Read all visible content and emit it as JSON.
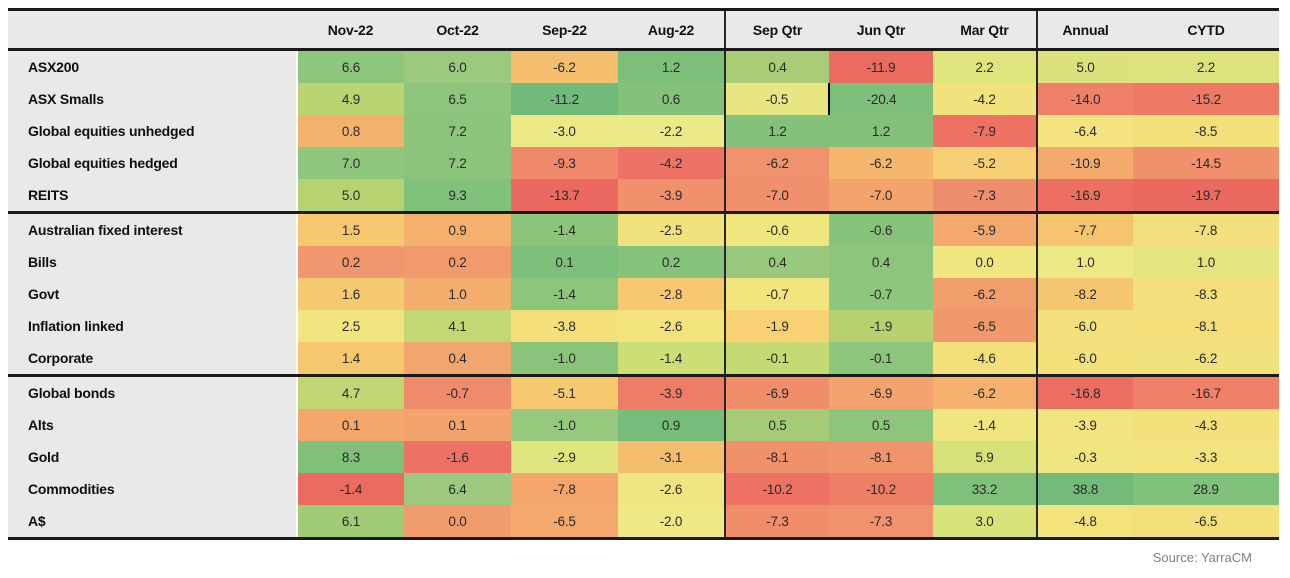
{
  "chart_data": {
    "type": "heatmap",
    "title": "",
    "unit": "percent return",
    "columns": [
      {
        "label": "",
        "type": "label"
      },
      {
        "label": "Nov-22",
        "group": "months"
      },
      {
        "label": "Oct-22",
        "group": "months"
      },
      {
        "label": "Sep-22",
        "group": "months"
      },
      {
        "label": "Aug-22",
        "group": "months",
        "group_end": true
      },
      {
        "label": "Sep Qtr",
        "group": "quarters"
      },
      {
        "label": "Jun Qtr",
        "group": "quarters"
      },
      {
        "label": "Mar Qtr",
        "group": "quarters",
        "group_end": true
      },
      {
        "label": "Annual",
        "group": "summary"
      },
      {
        "label": "CYTD",
        "group": "summary"
      }
    ],
    "rows": [
      {
        "label": "ASX200",
        "values": [
          6.6,
          6.0,
          -6.2,
          1.2,
          0.4,
          -11.9,
          2.2,
          5.0,
          2.2
        ],
        "colors": [
          "#8ec67d",
          "#9bca7e",
          "#f5bd6e",
          "#7cbf7b",
          "#a8cd76",
          "#ec6b60",
          "#dfe47d",
          "#dbe27b",
          "#dde37c"
        ]
      },
      {
        "label": "ASX Smalls",
        "values": [
          4.9,
          6.5,
          -11.2,
          0.6,
          -0.5,
          -20.4,
          -4.2,
          -14.0,
          -15.2
        ],
        "colors": [
          "#bad471",
          "#8dc57c",
          "#72ba79",
          "#84c17b",
          "#e7e682",
          "#7dbf7b",
          "#f1e27d",
          "#ee8168",
          "#ee7a66"
        ]
      },
      {
        "label": "Global equities unhedged",
        "values": [
          0.8,
          7.2,
          -3.0,
          -2.2,
          1.2,
          1.2,
          -7.9,
          -6.4,
          -8.5
        ],
        "colors": [
          "#f3b26c",
          "#8cc47c",
          "#ebe886",
          "#ece988",
          "#84c17b",
          "#83c17b",
          "#ed7264",
          "#f4e37e",
          "#f3e07b"
        ]
      },
      {
        "label": "Global equities hedged",
        "values": [
          7.0,
          7.2,
          -9.3,
          -4.2,
          -6.2,
          -6.2,
          -5.2,
          -10.9,
          -14.5
        ],
        "colors": [
          "#8fc67d",
          "#8cc47c",
          "#f0896b",
          "#ed7465",
          "#f0926d",
          "#f5b76e",
          "#f7cf74",
          "#f4a96d",
          "#f0906c"
        ]
      },
      {
        "label": "REITS",
        "values": [
          5.0,
          9.3,
          -13.7,
          -3.9,
          -7.0,
          -7.0,
          -7.3,
          -16.9,
          -19.7
        ],
        "colors": [
          "#b7d270",
          "#80c17c",
          "#eb6961",
          "#f0906d",
          "#f0906c",
          "#f3a36c",
          "#ef8e6c",
          "#ec6f62",
          "#eb6a60"
        ]
      },
      {
        "label": "Australian fixed interest",
        "group_start": true,
        "values": [
          1.5,
          0.9,
          -1.4,
          -2.5,
          -0.6,
          -0.6,
          -5.9,
          -7.7,
          -7.8
        ],
        "colors": [
          "#f6c970",
          "#f4b16d",
          "#8cc47c",
          "#f1e27e",
          "#f0e67f",
          "#88c37c",
          "#f3a86d",
          "#f6c36f",
          "#f3e07c"
        ]
      },
      {
        "label": "Bills",
        "values": [
          0.2,
          0.2,
          0.1,
          0.2,
          0.4,
          0.4,
          0.0,
          1.0,
          1.0
        ],
        "colors": [
          "#f0976d",
          "#f19b6d",
          "#7cc07b",
          "#86c27b",
          "#97c87d",
          "#8cc57c",
          "#efe680",
          "#ece984",
          "#e4e580"
        ]
      },
      {
        "label": "Govt",
        "values": [
          1.6,
          1.0,
          -1.4,
          -2.8,
          -0.7,
          -0.7,
          -6.2,
          -8.2,
          -8.3
        ],
        "colors": [
          "#f6ca70",
          "#f4ae6d",
          "#8ec57d",
          "#f7c870",
          "#f2e57e",
          "#8fc67d",
          "#f29d6c",
          "#f6c56f",
          "#f3df7b"
        ]
      },
      {
        "label": "Inflation linked",
        "values": [
          2.5,
          4.1,
          -3.8,
          -2.6,
          -1.9,
          -1.9,
          -6.5,
          -6.0,
          -8.1
        ],
        "colors": [
          "#f0e57f",
          "#c2d873",
          "#f5df7a",
          "#f2e37d",
          "#f7d173",
          "#b6d170",
          "#f0996d",
          "#f3e07c",
          "#f4de7a"
        ]
      },
      {
        "label": "Corporate",
        "values": [
          1.4,
          0.4,
          -1.0,
          -1.4,
          -0.1,
          -0.1,
          -4.6,
          -6.0,
          -6.2
        ],
        "colors": [
          "#f6c76f",
          "#f2a56c",
          "#8ac37c",
          "#cede76",
          "#c6da74",
          "#8dc57c",
          "#f4e07b",
          "#f3e17c",
          "#f2e27d"
        ]
      },
      {
        "label": "Global bonds",
        "group_start": true,
        "values": [
          4.7,
          -0.7,
          -5.1,
          -3.9,
          -6.9,
          -6.9,
          -6.2,
          -16.8,
          -16.7
        ],
        "colors": [
          "#c0d773",
          "#ef8a6b",
          "#f7ca71",
          "#ee7d67",
          "#f08d6b",
          "#f3a46c",
          "#f5b16d",
          "#ec6e62",
          "#ee8168"
        ]
      },
      {
        "label": "Alts",
        "values": [
          0.1,
          0.1,
          -1.0,
          0.9,
          0.5,
          0.5,
          -1.4,
          -3.9,
          -4.3
        ],
        "colors": [
          "#f3a76c",
          "#f3a36c",
          "#96c87d",
          "#76bc7a",
          "#a5cb77",
          "#8dc57d",
          "#f0e67f",
          "#f2e47e",
          "#f3e17c"
        ]
      },
      {
        "label": "Gold",
        "values": [
          8.3,
          -1.6,
          -2.9,
          -3.1,
          -8.1,
          -8.1,
          5.9,
          -0.3,
          -3.3
        ],
        "colors": [
          "#80c07b",
          "#ed7164",
          "#e0e47d",
          "#f5bd6e",
          "#f0916c",
          "#f0946c",
          "#d6e17a",
          "#f0e680",
          "#f1e47e"
        ]
      },
      {
        "label": "Commodities",
        "values": [
          -1.4,
          6.4,
          -7.8,
          -2.6,
          -10.2,
          -10.2,
          33.2,
          38.8,
          28.9
        ],
        "colors": [
          "#ec6b61",
          "#9cc97e",
          "#f3a56c",
          "#f0e681",
          "#ed7263",
          "#ee7d66",
          "#7fc07b",
          "#74bb79",
          "#80c17b"
        ]
      },
      {
        "label": "A$",
        "values": [
          6.1,
          0.0,
          -6.5,
          -2.0,
          -7.3,
          -7.3,
          3.0,
          -4.8,
          -6.5
        ],
        "colors": [
          "#a2cb75",
          "#f19c6c",
          "#f3a96d",
          "#eee985",
          "#f08e6c",
          "#f0926d",
          "#d8e27b",
          "#f4e27d",
          "#f3e07b"
        ]
      }
    ],
    "selection_mark": {
      "row_index": 1,
      "value_col_index": 5
    },
    "palette": {
      "negative_extreme": "#ec6b60",
      "neutral": "#f0e67f",
      "positive_extreme": "#72ba79",
      "header_bg": "#e9e9e9",
      "label_bg": "#e9e9e9",
      "border": "#1a1a1a",
      "value_text": "#2a2a2a",
      "source_text": "#808080"
    }
  },
  "source": {
    "note": "Source: YarraCM"
  }
}
